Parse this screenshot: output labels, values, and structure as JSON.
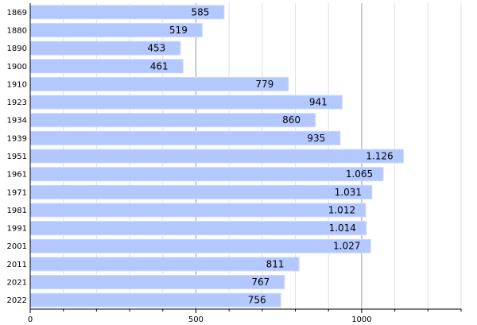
{
  "chart_data": {
    "type": "bar",
    "orientation": "horizontal",
    "categories": [
      "1869",
      "1880",
      "1890",
      "1900",
      "1910",
      "1923",
      "1934",
      "1939",
      "1951",
      "1961",
      "1971",
      "1981",
      "1991",
      "2001",
      "2011",
      "2021",
      "2022"
    ],
    "values": [
      585,
      519,
      453,
      461,
      779,
      941,
      860,
      935,
      1126,
      1065,
      1031,
      1012,
      1014,
      1027,
      811,
      767,
      756
    ],
    "value_labels": [
      "585",
      "519",
      "453",
      "461",
      "779",
      "941",
      "860",
      "935",
      "1.126",
      "1.065",
      "1.031",
      "1.012",
      "1.014",
      "1.027",
      "811",
      "767",
      "756"
    ],
    "x_ticks": [
      0,
      500,
      1000
    ],
    "x_tick_labels": [
      "0",
      "500",
      "1000"
    ],
    "xlim": [
      0,
      1300
    ],
    "grid": true,
    "colors": {
      "bar": "#b3c8ff",
      "bar_edge": "#ccd9ff",
      "grid_major": "#999999",
      "grid_minor": "#e0e0e0",
      "axis": "#000000"
    }
  }
}
